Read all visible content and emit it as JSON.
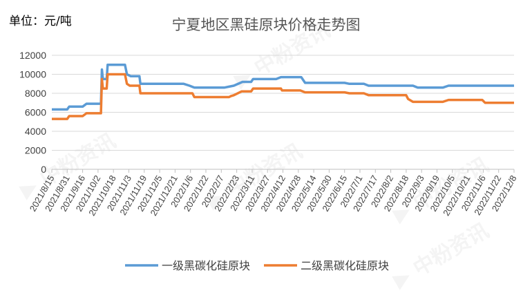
{
  "unit_label": "单位：元/吨",
  "colors": {
    "series1": "#5B9BD5",
    "series2": "#ED7D31",
    "grid": "#D9D9D9",
    "axis": "#BFBFBF"
  },
  "chart_data": {
    "type": "line",
    "title": "宁夏地区黑硅原块价格走势图",
    "xlabel": "",
    "ylabel": "",
    "ylim": [
      0,
      12000
    ],
    "yticks": [
      0,
      2000,
      4000,
      6000,
      8000,
      10000,
      12000
    ],
    "xlim": [
      "2021/8/15",
      "2022/12/8"
    ],
    "grid": "horizontal",
    "legend_position": "bottom",
    "categories": [
      "2021/8/15",
      "2021/8/31",
      "2021/9/16",
      "2021/10/2",
      "2021/10/18",
      "2021/11/3",
      "2021/11/19",
      "2021/12/5",
      "2021/12/21",
      "2022/1/6",
      "2022/1/22",
      "2022/2/7",
      "2022/2/23",
      "2022/3/11",
      "2022/3/27",
      "2022/4/12",
      "2022/4/28",
      "2022/5/14",
      "2022/5/30",
      "2022/6/15",
      "2022/7/1",
      "2022/7/17",
      "2022/8/2",
      "2022/8/18",
      "2022/9/3",
      "2022/9/19",
      "2022/10/5",
      "2022/10/21",
      "2022/11/6",
      "2022/11/22",
      "2022/12/8"
    ],
    "series": [
      {
        "name": "一级黑碳化硅原块",
        "points": [
          [
            "2021/8/15",
            6300
          ],
          [
            "2021/8/31",
            6300
          ],
          [
            "2021/9/2",
            6600
          ],
          [
            "2021/9/16",
            6600
          ],
          [
            "2021/9/20",
            6900
          ],
          [
            "2021/10/5",
            6900
          ],
          [
            "2021/10/6",
            10500
          ],
          [
            "2021/10/7",
            9500
          ],
          [
            "2021/10/11",
            9500
          ],
          [
            "2021/10/12",
            11000
          ],
          [
            "2021/10/30",
            11000
          ],
          [
            "2021/11/1",
            10000
          ],
          [
            "2021/11/5",
            9800
          ],
          [
            "2021/11/14",
            9800
          ],
          [
            "2021/11/15",
            9000
          ],
          [
            "2021/12/30",
            9000
          ],
          [
            "2022/1/5",
            8800
          ],
          [
            "2022/1/10",
            8600
          ],
          [
            "2022/2/10",
            8600
          ],
          [
            "2022/2/15",
            8700
          ],
          [
            "2022/2/20",
            8800
          ],
          [
            "2022/3/1",
            9200
          ],
          [
            "2022/3/10",
            9200
          ],
          [
            "2022/3/12",
            9500
          ],
          [
            "2022/4/5",
            9500
          ],
          [
            "2022/4/10",
            9700
          ],
          [
            "2022/5/1",
            9700
          ],
          [
            "2022/5/5",
            9100
          ],
          [
            "2022/6/15",
            9100
          ],
          [
            "2022/6/20",
            9000
          ],
          [
            "2022/7/5",
            9000
          ],
          [
            "2022/7/10",
            8800
          ],
          [
            "2022/8/25",
            8800
          ],
          [
            "2022/8/30",
            8600
          ],
          [
            "2022/9/25",
            8600
          ],
          [
            "2022/10/1",
            8800
          ],
          [
            "2022/12/8",
            8800
          ]
        ]
      },
      {
        "name": "二级黑碳化硅原块",
        "points": [
          [
            "2021/8/15",
            5300
          ],
          [
            "2021/8/31",
            5300
          ],
          [
            "2021/9/2",
            5600
          ],
          [
            "2021/9/16",
            5600
          ],
          [
            "2021/9/20",
            5900
          ],
          [
            "2021/10/5",
            5900
          ],
          [
            "2021/10/6",
            9500
          ],
          [
            "2021/10/7",
            8500
          ],
          [
            "2021/10/11",
            8500
          ],
          [
            "2021/10/12",
            10000
          ],
          [
            "2021/10/30",
            10000
          ],
          [
            "2021/11/1",
            9000
          ],
          [
            "2021/11/4",
            8800
          ],
          [
            "2021/11/14",
            8800
          ],
          [
            "2021/11/15",
            8000
          ],
          [
            "2022/1/8",
            8000
          ],
          [
            "2022/1/10",
            7600
          ],
          [
            "2022/2/15",
            7600
          ],
          [
            "2022/2/17",
            7700
          ],
          [
            "2022/2/20",
            7800
          ],
          [
            "2022/2/28",
            8200
          ],
          [
            "2022/3/10",
            8200
          ],
          [
            "2022/3/12",
            8500
          ],
          [
            "2022/4/10",
            8500
          ],
          [
            "2022/4/11",
            8300
          ],
          [
            "2022/4/30",
            8300
          ],
          [
            "2022/5/5",
            8100
          ],
          [
            "2022/6/15",
            8100
          ],
          [
            "2022/6/20",
            8000
          ],
          [
            "2022/7/5",
            8000
          ],
          [
            "2022/7/10",
            7800
          ],
          [
            "2022/8/18",
            7800
          ],
          [
            "2022/8/20",
            7400
          ],
          [
            "2022/8/25",
            7100
          ],
          [
            "2022/9/25",
            7100
          ],
          [
            "2022/10/1",
            7300
          ],
          [
            "2022/11/5",
            7300
          ],
          [
            "2022/11/8",
            7000
          ],
          [
            "2022/12/8",
            7000
          ]
        ]
      }
    ]
  },
  "watermark_text": "中粉资讯"
}
